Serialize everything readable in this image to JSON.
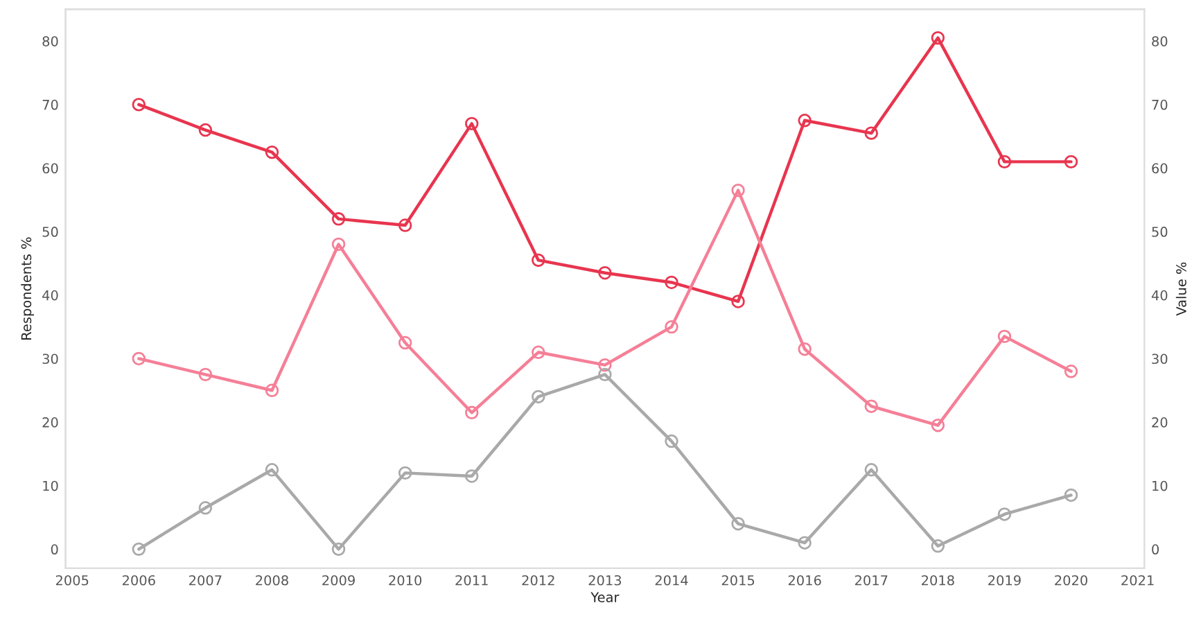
{
  "chart_data": {
    "type": "line",
    "xlabel": "Year",
    "ylabel": "Respondents %",
    "y2label": "Value %",
    "x": [
      2006,
      2007,
      2008,
      2009,
      2010,
      2011,
      2012,
      2013,
      2014,
      2015,
      2016,
      2017,
      2018,
      2019,
      2020
    ],
    "series": [
      {
        "color": "#e8354f",
        "values": [
          70,
          66,
          62.5,
          52,
          51,
          67,
          45.5,
          43.5,
          42,
          39,
          67.5,
          65.5,
          80.5,
          61,
          61
        ]
      },
      {
        "color": "#f57f97",
        "values": [
          30,
          27.5,
          25,
          48,
          32.5,
          21.5,
          31,
          29,
          35,
          56.5,
          31.5,
          22.5,
          19.5,
          33.5,
          28
        ]
      },
      {
        "color": "#a9a9a9",
        "values": [
          0,
          6.5,
          12.5,
          0,
          12,
          11.5,
          24,
          27.5,
          17,
          4,
          1,
          12.5,
          0.5,
          5.5,
          8.5
        ]
      }
    ],
    "xlim": [
      2004.9,
      2021.1
    ],
    "xticks": [
      2005,
      2006,
      2007,
      2008,
      2009,
      2010,
      2011,
      2012,
      2013,
      2014,
      2015,
      2016,
      2017,
      2018,
      2019,
      2020,
      2021
    ],
    "ylim": [
      -3,
      85
    ],
    "yticks": [
      0,
      10,
      20,
      30,
      40,
      50,
      60,
      70,
      80
    ],
    "y2lim": [
      -3,
      85
    ],
    "y2ticks": [
      0,
      10,
      20,
      30,
      40,
      50,
      60,
      70,
      80
    ],
    "marker": "circle",
    "line_style": "solid",
    "grid": false,
    "legend": false
  }
}
